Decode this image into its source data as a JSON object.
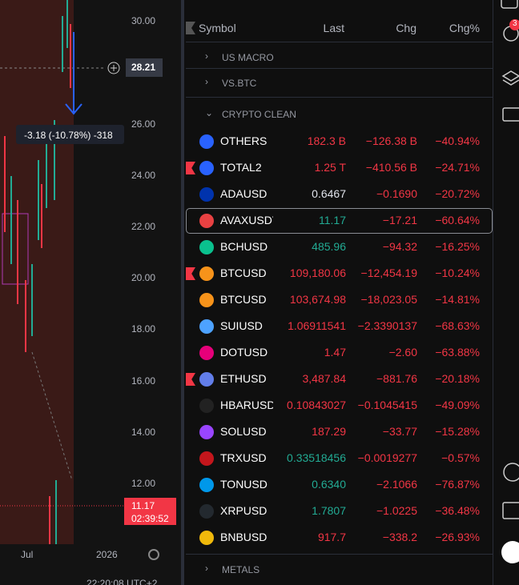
{
  "chart": {
    "price_labels": [
      "30.00",
      "26.00",
      "24.00",
      "22.00",
      "20.00",
      "18.00",
      "16.00",
      "14.00",
      "12.00"
    ],
    "crosshair_price": "28.21",
    "last_price": "11.17",
    "countdown": "02:39:52",
    "time_labels": [
      "Jul",
      "2026"
    ],
    "measure": "-3.18 (-10.78%) -318",
    "clock": "22:20:08 UTC+2"
  },
  "watchlist": {
    "columns": [
      "Symbol",
      "Last",
      "Chg",
      "Chg%"
    ],
    "sections": [
      "US MACRO",
      "VS.BTC",
      "CRYPTO CLEAN",
      "METALS"
    ],
    "rows": [
      {
        "symbol": "OTHERS",
        "last": "182.3 B",
        "chg": "−126.38 B",
        "chg_pct": "−40.94%",
        "last_color": "#f23645",
        "icon_color": "#2962ff",
        "flag": false
      },
      {
        "symbol": "TOTAL2",
        "last": "1.25 T",
        "chg": "−410.56 B",
        "chg_pct": "−24.71%",
        "last_color": "#f23645",
        "icon_color": "#2962ff",
        "flag": true
      },
      {
        "symbol": "ADAUSD",
        "last": "0.6467",
        "chg": "−0.1690",
        "chg_pct": "−20.72%",
        "last_color": "#e0e3eb",
        "icon_color": "#0033ad",
        "flag": false
      },
      {
        "symbol": "AVAXUSDT",
        "last": "11.17",
        "chg": "−17.21",
        "chg_pct": "−60.64%",
        "last_color": "#22ab94",
        "icon_color": "#e84142",
        "flag": false
      },
      {
        "symbol": "BCHUSD",
        "last": "485.96",
        "chg": "−94.32",
        "chg_pct": "−16.25%",
        "last_color": "#22ab94",
        "icon_color": "#0ac18e",
        "flag": false
      },
      {
        "symbol": "BTCUSD",
        "last": "109,180.06",
        "chg": "−12,454.19",
        "chg_pct": "−10.24%",
        "last_color": "#f23645",
        "icon_color": "#f7931a",
        "flag": true
      },
      {
        "symbol": "BTCUSD",
        "last": "103,674.98",
        "chg": "−18,023.05",
        "chg_pct": "−14.81%",
        "last_color": "#f23645",
        "icon_color": "#f7931a",
        "flag": false
      },
      {
        "symbol": "SUIUSD",
        "last": "1.06911541",
        "chg": "−2.3390137",
        "chg_pct": "−68.63%",
        "last_color": "#f23645",
        "icon_color": "#4da2ff",
        "flag": false
      },
      {
        "symbol": "DOTUSD",
        "last": "1.47",
        "chg": "−2.60",
        "chg_pct": "−63.88%",
        "last_color": "#f23645",
        "icon_color": "#e6007a",
        "flag": false
      },
      {
        "symbol": "ETHUSD",
        "last": "3,487.84",
        "chg": "−881.76",
        "chg_pct": "−20.18%",
        "last_color": "#f23645",
        "icon_color": "#627eea",
        "flag": true
      },
      {
        "symbol": "HBARUSD",
        "last": "0.10843027",
        "chg": "−0.1045415",
        "chg_pct": "−49.09%",
        "last_color": "#f23645",
        "icon_color": "#222222",
        "flag": false
      },
      {
        "symbol": "SOLUSD",
        "last": "187.29",
        "chg": "−33.77",
        "chg_pct": "−15.28%",
        "last_color": "#f23645",
        "icon_color": "#9945ff",
        "flag": false
      },
      {
        "symbol": "TRXUSD",
        "last": "0.33518456",
        "chg": "−0.0019277",
        "chg_pct": "−0.57%",
        "last_color": "#22ab94",
        "icon_color": "#c4161c",
        "flag": false
      },
      {
        "symbol": "TONUSD",
        "last": "0.6340",
        "chg": "−2.1066",
        "chg_pct": "−76.87%",
        "last_color": "#22ab94",
        "icon_color": "#0098ea",
        "flag": false
      },
      {
        "symbol": "XRPUSD",
        "last": "1.7807",
        "chg": "−1.0225",
        "chg_pct": "−36.48%",
        "last_color": "#22ab94",
        "icon_color": "#23292f",
        "flag": false
      },
      {
        "symbol": "BNBUSD",
        "last": "917.7",
        "chg": "−338.2",
        "chg_pct": "−26.93%",
        "last_color": "#f23645",
        "icon_color": "#f0b90b",
        "flag": false
      }
    ]
  },
  "toolbar": {
    "badge": "3"
  }
}
